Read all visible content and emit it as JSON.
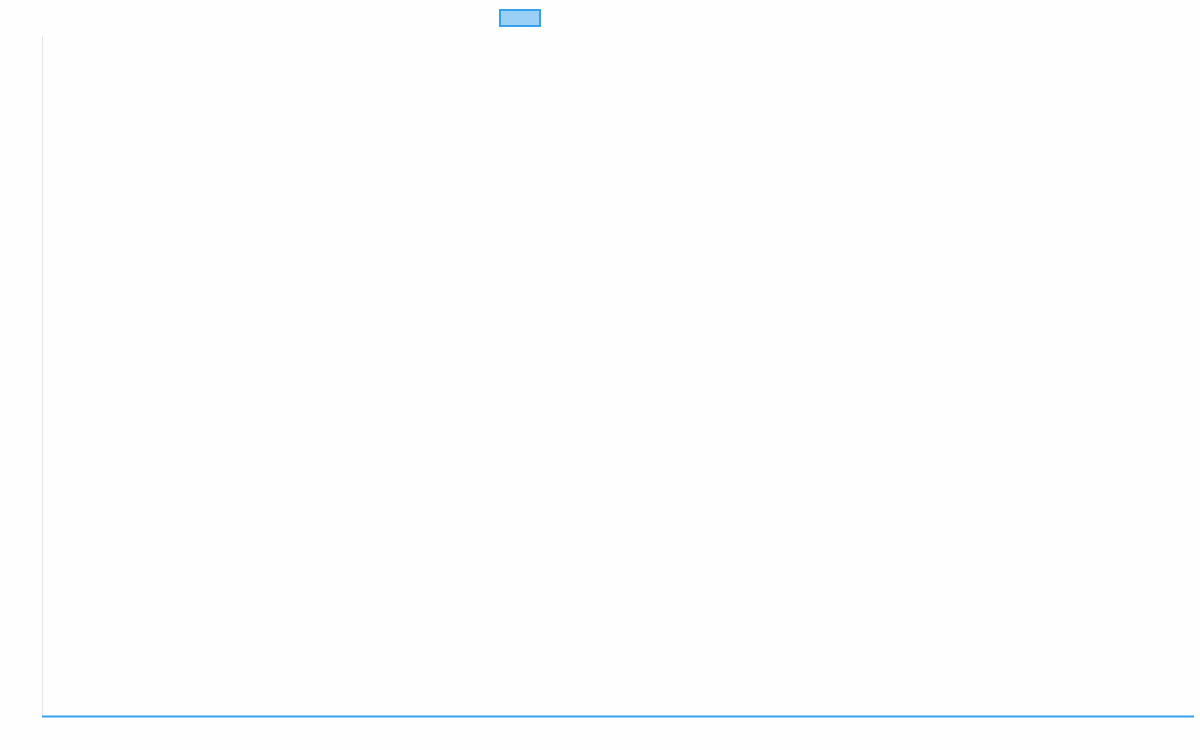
{
  "chart_data": {
    "type": "line",
    "title": "",
    "xlabel": "",
    "ylabel": "",
    "categories": [],
    "series": [
      {
        "name": "",
        "values": [],
        "border_color": "#36a2eb",
        "fill_color": "#9ad0f5"
      }
    ],
    "legend": "top",
    "grid": false
  },
  "colors": {
    "axis": "#e5e5e5",
    "series_line": "#36a2eb"
  }
}
